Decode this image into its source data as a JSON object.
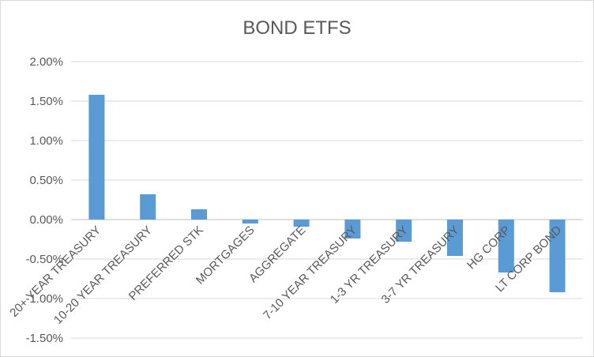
{
  "chart_data": {
    "type": "bar",
    "title": "BOND ETFS",
    "categories": [
      "20+ YEAR TREASURY",
      "10-20 YEAR TREASURY",
      "PREFERRED STK",
      "MORTGAGES",
      "AGGREGATE",
      "7-10 YEAR TREASURY",
      "1-3 YR TREASURY",
      "3-7 YR TREASURY",
      "HG CORP",
      "LT CORP BOND"
    ],
    "series": [
      {
        "values": [
          1.58,
          0.32,
          0.13,
          -0.05,
          -0.09,
          -0.24,
          -0.28,
          -0.46,
          -0.67,
          -0.92
        ]
      }
    ],
    "y_ticks": [
      "2.00%",
      "1.50%",
      "1.00%",
      "0.50%",
      "0.00%",
      "-0.50%",
      "-1.00%",
      "-1.50%"
    ],
    "ylim": [
      -1.5,
      2.0
    ],
    "y_unit": "%",
    "grid": true,
    "legend": "none",
    "bar_color": "#5b9bd5",
    "grid_color": "#d9d9d9",
    "text_color": "#595959"
  }
}
